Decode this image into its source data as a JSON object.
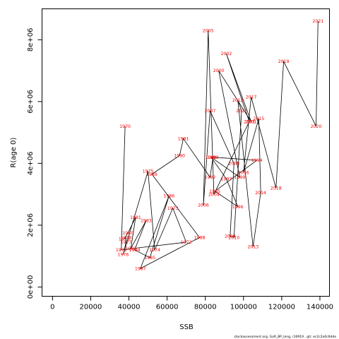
{
  "chart_data": {
    "type": "line",
    "xlabel": "SSB",
    "ylabel": "R(age 0)",
    "xlim": [
      -5500,
      145000
    ],
    "ylim": [
      -300000,
      9000000
    ],
    "x_ticks": [
      0,
      20000,
      40000,
      60000,
      80000,
      100000,
      120000,
      140000
    ],
    "y_ticks": [
      0,
      2000000,
      4000000,
      6000000,
      8000000
    ],
    "y_tick_labels": [
      "0e+00",
      "2e+06",
      "4e+06",
      "6e+06",
      "8e+06"
    ],
    "line_color": "#000000",
    "label_color": "#ff0000",
    "credit": "stockassessment.org, GoR_BP_long, r16919 ,  git: ec2c2a0c6dde",
    "points": [
      {
        "year": "1970",
        "ssb": 38000,
        "r": 5200000
      },
      {
        "year": "1971",
        "ssb": 36000,
        "r": 1200000
      },
      {
        "year": "1972",
        "ssb": 70000,
        "r": 1450000
      },
      {
        "year": "1973",
        "ssb": 63000,
        "r": 2550000
      },
      {
        "year": "1974",
        "ssb": 53500,
        "r": 1200000
      },
      {
        "year": "1975",
        "ssb": 50000,
        "r": 3750000
      },
      {
        "year": "1976",
        "ssb": 37000,
        "r": 1050000
      },
      {
        "year": "1977",
        "ssb": 38500,
        "r": 1450000
      },
      {
        "year": "1978",
        "ssb": 38500,
        "r": 1600000
      },
      {
        "year": "1979",
        "ssb": 37500,
        "r": 1550000
      },
      {
        "year": "1980",
        "ssb": 39500,
        "r": 1750000
      },
      {
        "year": "1981",
        "ssb": 43500,
        "r": 2250000
      },
      {
        "year": "1982",
        "ssb": 41000,
        "r": 1250000
      },
      {
        "year": "1983",
        "ssb": 49000,
        "r": 2150000
      },
      {
        "year": "1984",
        "ssb": 43000,
        "r": 1200000
      },
      {
        "year": "1985",
        "ssb": 51000,
        "r": 950000
      },
      {
        "year": "1986",
        "ssb": 61000,
        "r": 2950000
      },
      {
        "year": "1987",
        "ssb": 46000,
        "r": 600000
      },
      {
        "year": "1988",
        "ssb": 77000,
        "r": 1600000
      },
      {
        "year": "1989",
        "ssb": 52000,
        "r": 3650000
      },
      {
        "year": "1990",
        "ssb": 66500,
        "r": 4250000
      },
      {
        "year": "1991",
        "ssb": 68500,
        "r": 4800000
      },
      {
        "year": "1992",
        "ssb": 82500,
        "r": 3550000
      },
      {
        "year": "1993",
        "ssb": 84000,
        "r": 4200000
      },
      {
        "year": "1994",
        "ssb": 107000,
        "r": 4100000
      },
      {
        "year": "1995",
        "ssb": 85000,
        "r": 3100000
      },
      {
        "year": "1996",
        "ssb": 97000,
        "r": 2600000
      },
      {
        "year": "1997",
        "ssb": 91000,
        "r": 3500000
      },
      {
        "year": "1998",
        "ssb": 83000,
        "r": 4200000
      },
      {
        "year": "1999",
        "ssb": 98000,
        "r": 3550000
      },
      {
        "year": "2000",
        "ssb": 87000,
        "r": 7000000
      },
      {
        "year": "2001",
        "ssb": 104000,
        "r": 5350000
      },
      {
        "year": "2002",
        "ssb": 91000,
        "r": 7550000
      },
      {
        "year": "2003",
        "ssb": 103000,
        "r": 5350000
      },
      {
        "year": "2004",
        "ssb": 84500,
        "r": 3000000
      },
      {
        "year": "2005",
        "ssb": 81500,
        "r": 8300000
      },
      {
        "year": "2006",
        "ssb": 79000,
        "r": 2650000
      },
      {
        "year": "2007",
        "ssb": 82500,
        "r": 5700000
      },
      {
        "year": "2008",
        "ssb": 95000,
        "r": 4000000
      },
      {
        "year": "2009",
        "ssb": 93000,
        "r": 1650000
      },
      {
        "year": "2010",
        "ssb": 95000,
        "r": 1600000
      },
      {
        "year": "2011",
        "ssb": 99000,
        "r": 5700000
      },
      {
        "year": "2012",
        "ssb": 97000,
        "r": 6050000
      },
      {
        "year": "2013",
        "ssb": 105000,
        "r": 1300000
      },
      {
        "year": "2014",
        "ssb": 109000,
        "r": 3050000
      },
      {
        "year": "2015",
        "ssb": 108000,
        "r": 5450000
      },
      {
        "year": "2016",
        "ssb": 100000,
        "r": 3700000
      },
      {
        "year": "2017",
        "ssb": 104000,
        "r": 6150000
      },
      {
        "year": "2018",
        "ssb": 117000,
        "r": 3200000
      },
      {
        "year": "2019",
        "ssb": 121000,
        "r": 7300000
      },
      {
        "year": "2020",
        "ssb": 138000,
        "r": 5200000
      },
      {
        "year": "2021",
        "ssb": 139000,
        "r": 8600000
      }
    ]
  }
}
